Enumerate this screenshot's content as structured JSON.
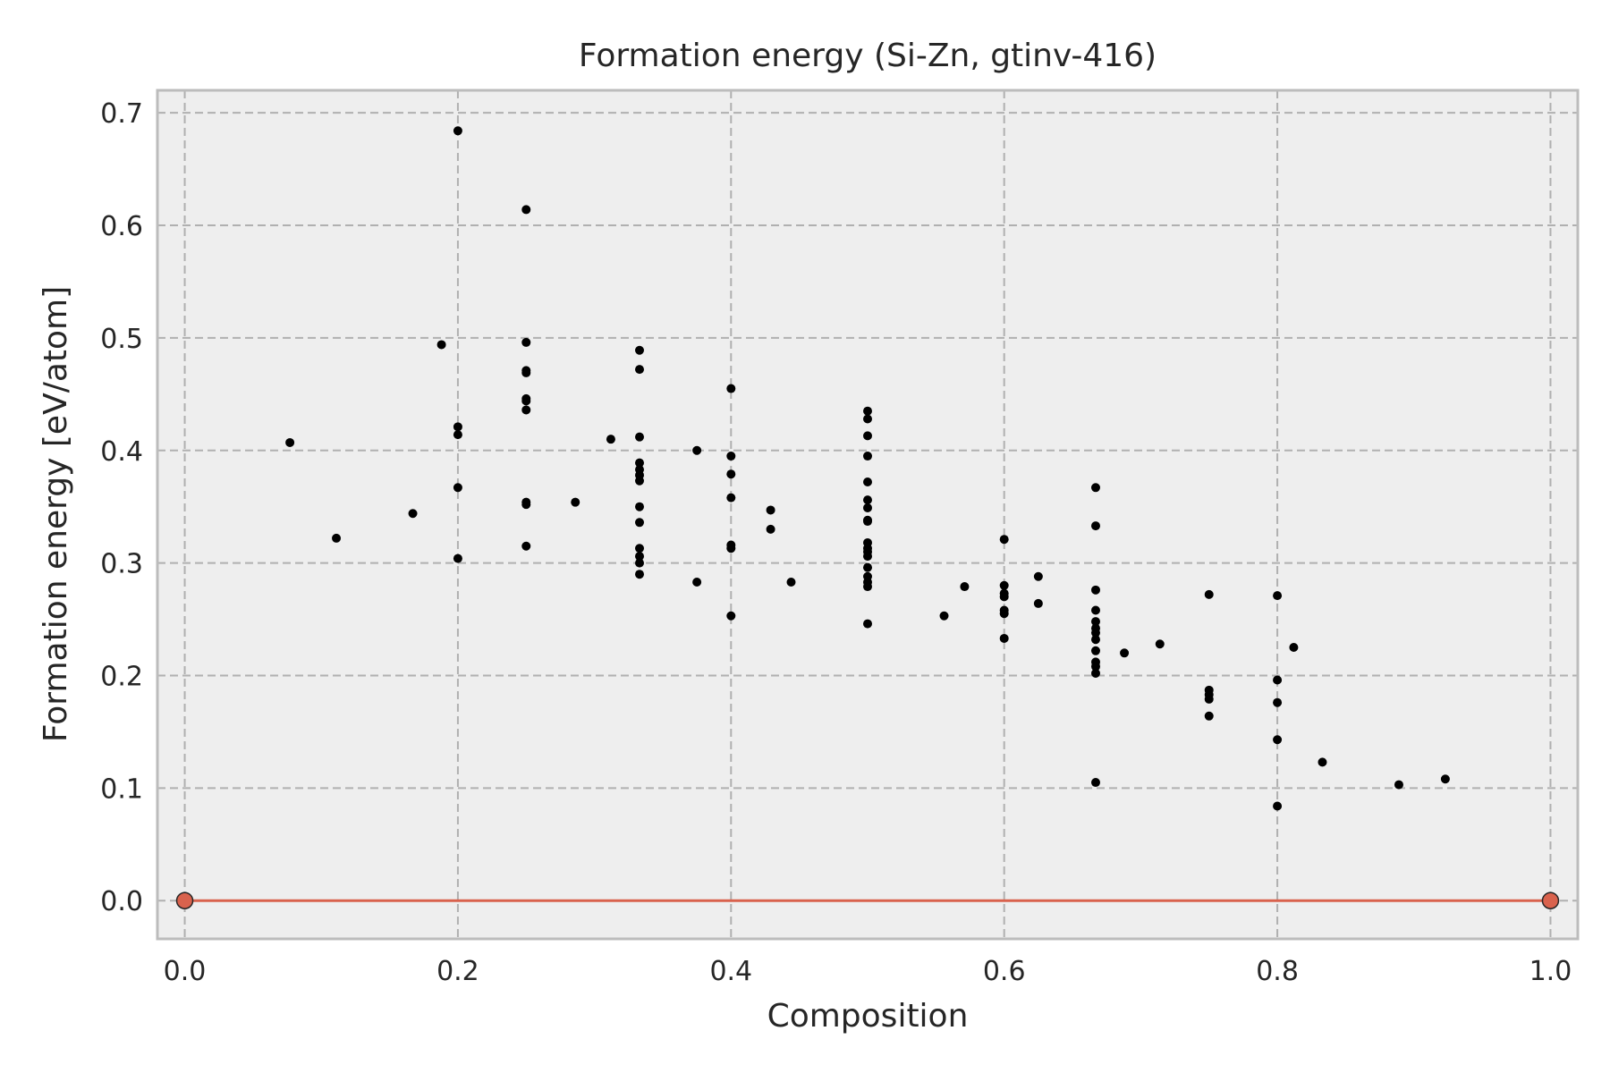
{
  "chart_data": {
    "type": "scatter",
    "title": "Formation energy (Si-Zn, gtinv-416)",
    "xlabel": "Composition",
    "ylabel": "Formation energy [eV/atom]",
    "xlim": [
      -0.02,
      1.02
    ],
    "ylim": [
      -0.034,
      0.72
    ],
    "xticks": [
      0.0,
      0.2,
      0.4,
      0.6,
      0.8,
      1.0
    ],
    "xtick_labels": [
      "0.0",
      "0.2",
      "0.4",
      "0.6",
      "0.8",
      "1.0"
    ],
    "yticks": [
      0.0,
      0.1,
      0.2,
      0.3,
      0.4,
      0.5,
      0.6,
      0.7
    ],
    "ytick_labels": [
      "0.0",
      "0.1",
      "0.2",
      "0.3",
      "0.4",
      "0.5",
      "0.6",
      "0.7"
    ],
    "grid": true,
    "colors": {
      "background": "#eeeeee",
      "frame": "#bcbcbc",
      "grid": "#b0b0b0",
      "points": "#000000",
      "hull": "#d9624d",
      "hull_marker_edge": "#262626"
    },
    "series": [
      {
        "kind": "scatter",
        "points": [
          [
            0.077,
            0.407
          ],
          [
            0.111,
            0.322
          ],
          [
            0.167,
            0.344
          ],
          [
            0.188,
            0.494
          ],
          [
            0.2,
            0.684
          ],
          [
            0.2,
            0.421
          ],
          [
            0.2,
            0.414
          ],
          [
            0.2,
            0.367
          ],
          [
            0.2,
            0.304
          ],
          [
            0.25,
            0.614
          ],
          [
            0.25,
            0.496
          ],
          [
            0.25,
            0.471
          ],
          [
            0.25,
            0.469
          ],
          [
            0.25,
            0.446
          ],
          [
            0.25,
            0.444
          ],
          [
            0.25,
            0.436
          ],
          [
            0.25,
            0.354
          ],
          [
            0.25,
            0.352
          ],
          [
            0.25,
            0.315
          ],
          [
            0.286,
            0.354
          ],
          [
            0.312,
            0.41
          ],
          [
            0.333,
            0.489
          ],
          [
            0.333,
            0.472
          ],
          [
            0.333,
            0.412
          ],
          [
            0.333,
            0.389
          ],
          [
            0.333,
            0.383
          ],
          [
            0.333,
            0.378
          ],
          [
            0.333,
            0.373
          ],
          [
            0.333,
            0.35
          ],
          [
            0.333,
            0.336
          ],
          [
            0.333,
            0.313
          ],
          [
            0.333,
            0.306
          ],
          [
            0.333,
            0.3
          ],
          [
            0.333,
            0.29
          ],
          [
            0.375,
            0.4
          ],
          [
            0.375,
            0.283
          ],
          [
            0.4,
            0.455
          ],
          [
            0.4,
            0.395
          ],
          [
            0.4,
            0.379
          ],
          [
            0.4,
            0.358
          ],
          [
            0.4,
            0.316
          ],
          [
            0.4,
            0.313
          ],
          [
            0.4,
            0.253
          ],
          [
            0.429,
            0.347
          ],
          [
            0.429,
            0.33
          ],
          [
            0.444,
            0.283
          ],
          [
            0.5,
            0.435
          ],
          [
            0.5,
            0.428
          ],
          [
            0.5,
            0.413
          ],
          [
            0.5,
            0.395
          ],
          [
            0.5,
            0.372
          ],
          [
            0.5,
            0.356
          ],
          [
            0.5,
            0.349
          ],
          [
            0.5,
            0.338
          ],
          [
            0.5,
            0.337
          ],
          [
            0.5,
            0.318
          ],
          [
            0.5,
            0.313
          ],
          [
            0.5,
            0.31
          ],
          [
            0.5,
            0.306
          ],
          [
            0.5,
            0.296
          ],
          [
            0.5,
            0.288
          ],
          [
            0.5,
            0.283
          ],
          [
            0.5,
            0.279
          ],
          [
            0.5,
            0.246
          ],
          [
            0.556,
            0.253
          ],
          [
            0.571,
            0.279
          ],
          [
            0.6,
            0.321
          ],
          [
            0.6,
            0.28
          ],
          [
            0.6,
            0.273
          ],
          [
            0.6,
            0.27
          ],
          [
            0.6,
            0.258
          ],
          [
            0.6,
            0.255
          ],
          [
            0.6,
            0.233
          ],
          [
            0.625,
            0.288
          ],
          [
            0.625,
            0.264
          ],
          [
            0.667,
            0.367
          ],
          [
            0.667,
            0.333
          ],
          [
            0.667,
            0.276
          ],
          [
            0.667,
            0.258
          ],
          [
            0.667,
            0.248
          ],
          [
            0.667,
            0.242
          ],
          [
            0.667,
            0.238
          ],
          [
            0.667,
            0.232
          ],
          [
            0.667,
            0.222
          ],
          [
            0.667,
            0.212
          ],
          [
            0.667,
            0.208
          ],
          [
            0.667,
            0.202
          ],
          [
            0.667,
            0.105
          ],
          [
            0.688,
            0.22
          ],
          [
            0.714,
            0.228
          ],
          [
            0.75,
            0.272
          ],
          [
            0.75,
            0.187
          ],
          [
            0.75,
            0.183
          ],
          [
            0.75,
            0.179
          ],
          [
            0.75,
            0.164
          ],
          [
            0.8,
            0.271
          ],
          [
            0.8,
            0.196
          ],
          [
            0.8,
            0.176
          ],
          [
            0.8,
            0.143
          ],
          [
            0.8,
            0.084
          ],
          [
            0.812,
            0.225
          ],
          [
            0.833,
            0.123
          ],
          [
            0.889,
            0.103
          ],
          [
            0.923,
            0.108
          ]
        ]
      },
      {
        "kind": "hull-line",
        "points": [
          [
            0.0,
            0.0
          ],
          [
            1.0,
            0.0
          ]
        ]
      }
    ]
  }
}
